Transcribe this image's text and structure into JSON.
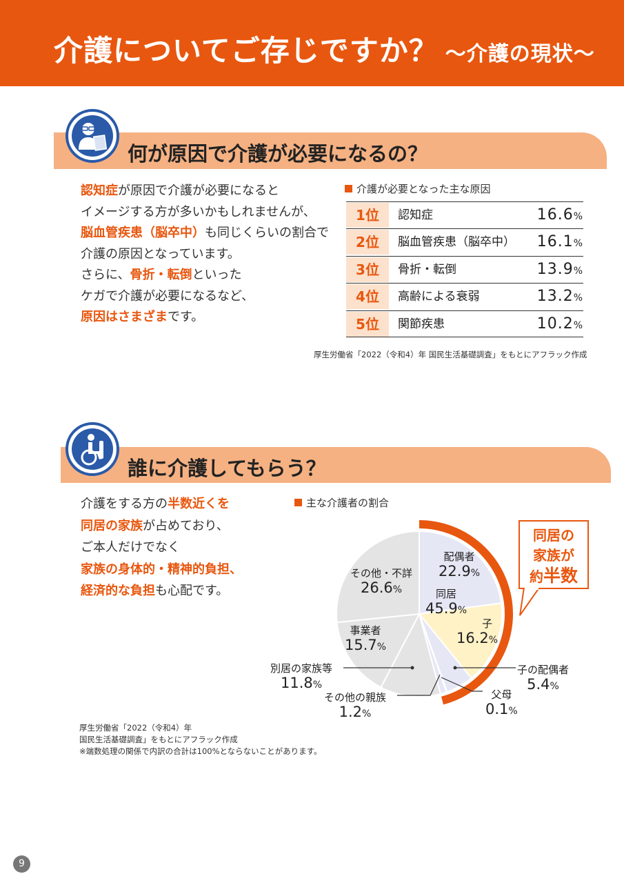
{
  "header": {
    "title": "介護についてご存じですか？",
    "subtitle": "～介護の現状～"
  },
  "section1": {
    "title": "何が原因で介護が必要になるの？",
    "icon": "doctor-icon",
    "text_lines": [
      [
        {
          "t": "認知症",
          "h": true
        },
        {
          "t": "が原因で介護が必要になると"
        }
      ],
      [
        {
          "t": "イメージする方が多いかもしれませんが、"
        }
      ],
      [
        {
          "t": "脳血管疾患（脳卒中）",
          "h": true
        },
        {
          "t": "も同じくらいの割合で"
        }
      ],
      [
        {
          "t": "介護の原因となっています。"
        }
      ],
      [
        {
          "t": "さらに、"
        },
        {
          "t": "骨折・転倒",
          "h": true
        },
        {
          "t": "といった"
        }
      ],
      [
        {
          "t": "ケガで介護が必要になるなど、"
        }
      ],
      [
        {
          "t": "原因はさまざま",
          "h": true
        },
        {
          "t": "です。"
        }
      ]
    ],
    "table_title": "介護が必要となった主な原因",
    "rows": [
      {
        "rank": "1位",
        "label": "認知症",
        "value": "16.6",
        "unit": "%"
      },
      {
        "rank": "2位",
        "label": "脳血管疾患（脳卒中）",
        "value": "16.1",
        "unit": "%"
      },
      {
        "rank": "3位",
        "label": "骨折・転倒",
        "value": "13.9",
        "unit": "%"
      },
      {
        "rank": "4位",
        "label": "高齢による衰弱",
        "value": "13.2",
        "unit": "%"
      },
      {
        "rank": "5位",
        "label": "関節疾患",
        "value": "10.2",
        "unit": "%"
      }
    ],
    "source": "厚生労働省「2022（令和4）年 国民生活基礎調査」をもとにアフラック作成"
  },
  "section2": {
    "title": "誰に介護してもらう？",
    "icon": "wheelchair-icon",
    "text_lines": [
      [
        {
          "t": "介護をする方の"
        },
        {
          "t": "半数近くを",
          "h": true
        }
      ],
      [
        {
          "t": "同居の家族",
          "h": true
        },
        {
          "t": "が占めており、"
        }
      ],
      [
        {
          "t": "ご本人だけでなく"
        }
      ],
      [
        {
          "t": "家族の身体的・精神的負担、",
          "h": true
        }
      ],
      [
        {
          "t": "経済的な負担",
          "h": true
        },
        {
          "t": "も心配です。"
        }
      ]
    ],
    "callout": {
      "line1": "同居の",
      "line2": "家族が",
      "line3_small": "約",
      "line3_big": "半数"
    },
    "cohabiting_label": {
      "name": "同居",
      "value": "45.9",
      "unit": "%"
    },
    "source_lines": [
      "厚生労働省「2022（令和4）年",
      "国民生活基礎調査」をもとにアフラック作成",
      "※端数処理の関係で内訳の合計は100%とならないことがあります。"
    ]
  },
  "chart_data": {
    "type": "pie",
    "title": "主な介護者の割合",
    "slices": [
      {
        "name": "配偶者",
        "value": 22.9,
        "group": "同居",
        "color": "#E6E7F5"
      },
      {
        "name": "子",
        "value": 16.2,
        "group": "同居",
        "color": "#FFF2C6"
      },
      {
        "name": "子の配偶者",
        "value": 5.4,
        "group": "同居",
        "color": "#E6E7F5"
      },
      {
        "name": "父母",
        "value": 0.1,
        "group": "同居",
        "color": "#E6E7F5"
      },
      {
        "name": "その他の親族",
        "value": 1.2,
        "group": "同居",
        "color": "#E6E7F5"
      },
      {
        "name": "別居の家族等",
        "value": 11.8,
        "group": "その他",
        "color": "#E4E4E4"
      },
      {
        "name": "事業者",
        "value": 15.7,
        "group": "その他",
        "color": "#E4E4E4"
      },
      {
        "name": "その他・不詳",
        "value": 26.6,
        "group": "その他",
        "color": "#E4E4E4"
      }
    ],
    "cohabiting_total": 45.9,
    "unit": "%",
    "accent_color": "#E8570F"
  },
  "page": {
    "number": "9"
  }
}
